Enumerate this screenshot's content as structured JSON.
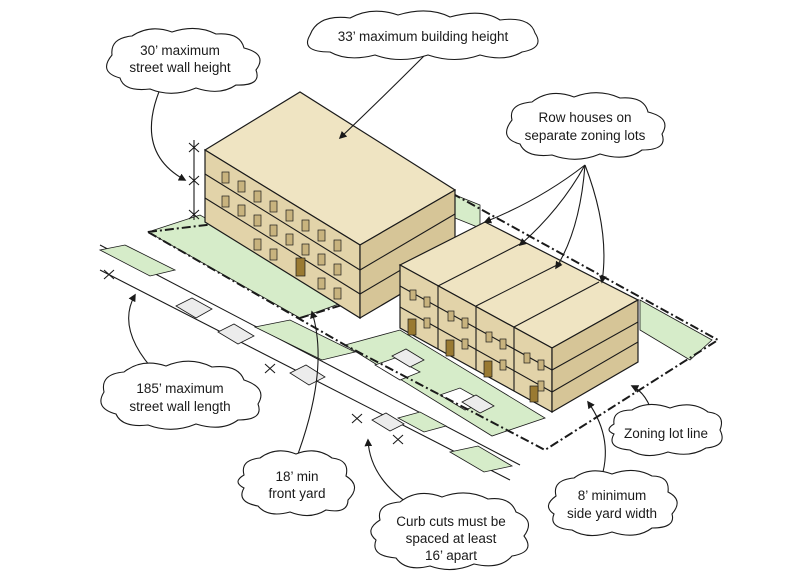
{
  "colors": {
    "building_light": "#efe4c2",
    "building_front": "#e2d3a9",
    "building_side": "#d6c597",
    "yard_green": "#d6ecc9",
    "window_fill": "#c8b37e",
    "door_fill": "#9a7a32",
    "outline": "#1a1a1a"
  },
  "callouts": {
    "max_building_height": "33’ maximum building height",
    "max_street_wall_height": [
      "30’ maximum",
      "street wall height"
    ],
    "row_houses": [
      "Row houses on",
      "separate zoning lots"
    ],
    "max_street_wall_length": [
      "185’ maximum",
      "street wall length"
    ],
    "min_front_yard": [
      "18’ min",
      "front yard"
    ],
    "curb_cuts": [
      "Curb cuts must be",
      "spaced at least",
      "16’ apart"
    ],
    "zoning_lot_line": "Zoning lot line",
    "min_side_yard": [
      "8’ minimum",
      "side yard width"
    ]
  }
}
